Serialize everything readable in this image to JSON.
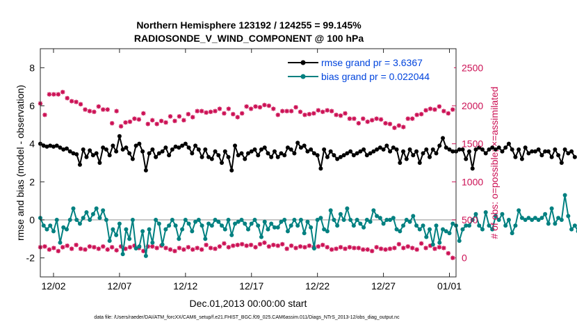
{
  "chart_data": {
    "type": "line",
    "title_line1": "Northern Hemisphere 123192 / 124255 = 99.145%",
    "title_line2": "RADIOSONDE_V_WIND_COMPONENT @ 100 hPa",
    "xlabel": "Dec.01,2013 00:00:00 start",
    "ylabel_left": "rmse and bias (model - observation)",
    "ylabel_right": "# of obs: o=possible; ×=assimilated",
    "footer": "data file: /Users/raeder/DAI/ATM_forcXX/CAM6_setup/f.e21.FHIST_BGC.f09_025.CAM6assim.011/Diags_NTrS_2013-12/obs_diag_output.nc",
    "xlim_days": [
      0,
      31.5
    ],
    "ylim_left": [
      -3,
      9
    ],
    "ylim_right": [
      -250,
      2750
    ],
    "x_ticks": [
      {
        "day": 1,
        "label": "12/02"
      },
      {
        "day": 6,
        "label": "12/07"
      },
      {
        "day": 11,
        "label": "12/12"
      },
      {
        "day": 16,
        "label": "12/17"
      },
      {
        "day": 21,
        "label": "12/22"
      },
      {
        "day": 26,
        "label": "12/27"
      },
      {
        "day": 31,
        "label": "01/01"
      }
    ],
    "y_ticks_left": [
      -2,
      0,
      2,
      4,
      6,
      8
    ],
    "y_ticks_right": [
      0,
      500,
      1000,
      1500,
      2000,
      2500
    ],
    "legend": {
      "position": "top-right",
      "rmse_label": "rmse grand pr = 3.6367",
      "bias_label": "bias grand pr = 0.022044"
    },
    "colors": {
      "rmse": "#000000",
      "bias": "#008080",
      "obs": "#cc1155",
      "zero_line": "#b3b3b3",
      "legend_text": "#0044dd",
      "right_axis": "#cc1155"
    },
    "step_days": 0.25,
    "start_day": 0,
    "rmse": [
      4.0,
      3.9,
      3.85,
      3.9,
      3.85,
      3.9,
      3.8,
      3.7,
      3.75,
      3.6,
      3.5,
      3.45,
      2.9,
      3.7,
      3.3,
      3.65,
      3.4,
      3.5,
      3.0,
      3.8,
      3.7,
      3.4,
      3.9,
      3.6,
      4.4,
      3.7,
      3.8,
      3.5,
      3.2,
      3.9,
      4.0,
      3.6,
      2.6,
      3.5,
      3.7,
      3.3,
      3.5,
      3.6,
      3.8,
      3.4,
      3.7,
      3.85,
      3.8,
      3.9,
      4.0,
      3.8,
      3.5,
      3.9,
      3.7,
      3.3,
      3.7,
      3.3,
      3.2,
      3.6,
      3.4,
      3.0,
      3.6,
      3.3,
      2.6,
      3.9,
      3.4,
      3.5,
      3.2,
      3.5,
      3.6,
      3.7,
      3.4,
      3.7,
      3.8,
      3.5,
      3.3,
      3.6,
      3.3,
      3.5,
      3.4,
      3.8,
      3.7,
      3.5,
      4.05,
      3.8,
      3.9,
      3.6,
      3.7,
      3.5,
      3.4,
      2.7,
      3.7,
      3.3,
      3.6,
      3.4,
      3.2,
      3.3,
      3.4,
      3.5,
      3.6,
      3.4,
      3.5,
      3.6,
      3.7,
      3.4,
      3.5,
      3.6,
      3.7,
      3.8,
      3.7,
      3.9,
      3.6,
      3.8,
      3.7,
      3.0,
      3.6,
      3.2,
      3.7,
      3.4,
      3.6,
      3.0,
      3.5,
      3.7,
      3.3,
      3.7,
      3.5,
      3.9,
      4.3,
      3.8,
      3.7,
      3.6,
      3.6,
      3.7,
      3.7,
      3.2,
      3.6,
      2.7,
      3.7,
      3.8,
      3.7,
      3.5,
      3.7,
      3.8,
      3.7,
      3.8,
      3.6,
      3.8,
      4.0,
      3.7,
      3.3,
      3.7,
      3.2,
      3.8,
      3.5,
      3.6,
      3.6,
      3.7,
      3.4,
      3.6,
      3.6,
      3.3,
      3.7,
      3.4,
      3.0,
      3.7,
      3.5,
      3.6,
      3.3
    ],
    "bias": [
      0.1,
      -0.3,
      -0.5,
      -0.3,
      -0.6,
      0.0,
      -1.2,
      -0.4,
      -0.5,
      0.0,
      0.6,
      0.0,
      -0.2,
      0.1,
      0.4,
      0.0,
      0.3,
      0.6,
      0.1,
      0.5,
      0.0,
      -1.1,
      -0.5,
      -0.8,
      -0.2,
      -1.8,
      -0.5,
      -1.0,
      0.0,
      -1.5,
      -1.4,
      -0.6,
      -1.9,
      -0.5,
      -1.2,
      0.0,
      -0.2,
      -1.3,
      -0.5,
      -0.3,
      0.0,
      -0.3,
      -1.0,
      -0.5,
      0.0,
      -0.2,
      -0.6,
      -0.1,
      0.0,
      -0.3,
      -1.0,
      -0.2,
      -0.3,
      0.0,
      -0.1,
      -0.3,
      -0.5,
      0.0,
      -0.8,
      -0.2,
      -0.1,
      0.0,
      -0.2,
      -0.5,
      -0.2,
      0.0,
      -0.3,
      -0.9,
      -0.1,
      -0.5,
      -0.2,
      -0.4,
      -0.4,
      -0.1,
      0.0,
      -0.6,
      -0.3,
      0.0,
      -0.3,
      0.0,
      -0.7,
      -0.1,
      -0.4,
      -1.5,
      0.0,
      0.1,
      -0.5,
      -0.6,
      0.5,
      0.0,
      -0.3,
      0.3,
      0.0,
      0.6,
      0.0,
      -0.3,
      0.0,
      -0.2,
      -0.4,
      0.0,
      -0.1,
      0.5,
      0.2,
      0.1,
      -0.2,
      0.0,
      0.0,
      0.1,
      -0.5,
      -0.6,
      -0.3,
      0.0,
      -0.1,
      0.2,
      -0.3,
      -0.5,
      -0.3,
      -0.9,
      -0.5,
      -1.3,
      -0.3,
      -1.2,
      -0.5,
      -0.6,
      -0.7,
      -0.2,
      -0.3,
      -1.1,
      -0.5,
      -0.3,
      -0.3,
      0.0,
      0.3,
      -0.3,
      -0.5,
      0.4,
      -0.3,
      -0.5,
      0.2,
      0.0,
      0.3,
      -0.3,
      0.0,
      -0.7,
      -0.3,
      0.5,
      0.1,
      0.0,
      0.1,
      0.0,
      0.1,
      0.0,
      0.1,
      0.3,
      -0.2,
      0.6,
      -0.2,
      0.1,
      0.0,
      1.3,
      0.2,
      -0.5,
      -0.3,
      -0.6,
      0.3,
      0.2,
      0.2,
      0.3,
      -0.3,
      0.1,
      -0.2,
      0.0,
      -0.5
    ],
    "obs_possible": [
      2030,
      1880,
      2150,
      2150,
      2150,
      2180,
      2100,
      2060,
      2050,
      2020,
      1950,
      1930,
      1920,
      1990,
      1950,
      1950,
      1770,
      1930,
      1730,
      1780,
      1790,
      1830,
      1820,
      1900,
      1760,
      1810,
      1760,
      1800,
      1780,
      1860,
      1800,
      1860,
      1810,
      1890,
      1850,
      1930,
      1930,
      1910,
      1920,
      1930,
      1960,
      1900,
      1960,
      1890,
      1850,
      1900,
      1990,
      1960,
      1990,
      1980,
      2010,
      2000,
      1960,
      1880,
      1930,
      1930,
      1930,
      1980,
      1920,
      1880,
      1890,
      1900,
      1940,
      1920,
      1940,
      1930,
      1880,
      1870,
      1900,
      1830,
      1830,
      1770,
      1830,
      1790,
      1810,
      1830,
      1820,
      1770,
      1760,
      1710,
      1740,
      1720,
      1830,
      1830,
      1880,
      1890,
      1940,
      1960,
      1950,
      1990,
      1930,
      1900,
      1950
    ],
    "obs_assimilated": [
      140,
      150,
      110,
      130,
      90,
      140,
      160,
      120,
      170,
      120,
      110,
      150,
      140,
      120,
      150,
      110,
      140,
      100,
      150,
      120,
      140,
      160,
      130,
      90,
      150,
      150,
      130,
      160,
      130,
      110,
      90,
      130,
      110,
      140,
      110,
      130,
      110,
      170,
      130,
      120,
      150,
      190,
      140,
      160,
      170,
      180,
      160,
      170,
      140,
      180,
      200,
      150,
      170,
      160,
      180,
      120,
      160,
      130,
      150,
      140,
      160,
      140,
      150,
      170,
      140,
      110,
      120,
      140,
      120,
      140,
      130,
      130,
      110,
      110,
      90,
      140,
      120,
      110,
      120,
      130,
      180,
      130,
      150,
      130,
      110,
      190,
      130,
      160,
      120,
      140,
      130,
      60,
      0
    ]
  }
}
